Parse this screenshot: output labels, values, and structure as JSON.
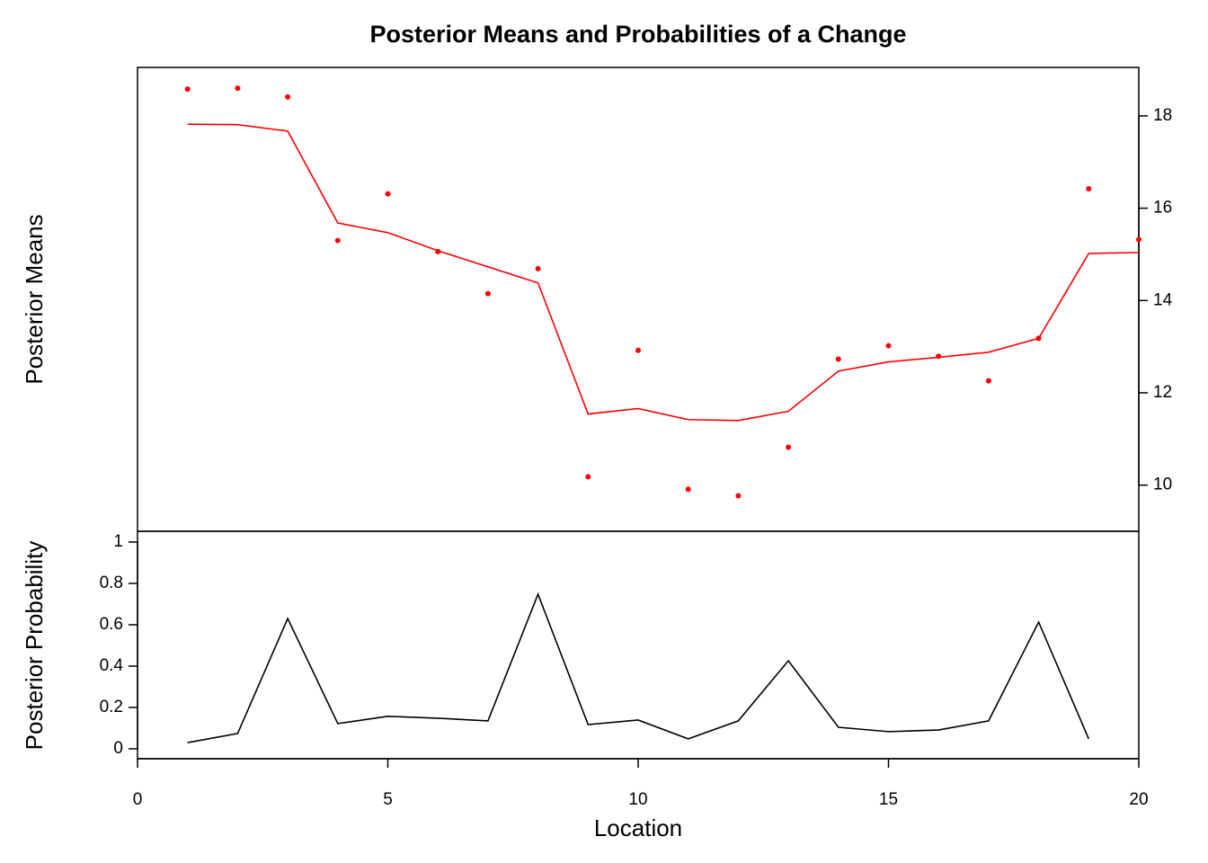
{
  "chart_data": [
    {
      "type": "line",
      "title": "Posterior Means and Probabilities of a Change",
      "y_label": "Posterior Means",
      "x": [
        1,
        2,
        3,
        4,
        5,
        6,
        7,
        8,
        9,
        10,
        11,
        12,
        13,
        14,
        15,
        16,
        17,
        18,
        19,
        20
      ],
      "series": [
        {
          "type": "scatter",
          "color": "#ff0000",
          "values": [
            18.58,
            18.6,
            18.41,
            15.3,
            16.31,
            15.06,
            14.15,
            14.69,
            10.18,
            12.92,
            9.91,
            9.77,
            10.82,
            12.73,
            13.02,
            12.79,
            12.26,
            13.18,
            16.42,
            15.32
          ]
        },
        {
          "type": "line",
          "color": "#ff0000",
          "values": [
            17.82,
            17.81,
            17.67,
            15.68,
            15.47,
            15.08,
            14.73,
            14.38,
            11.54,
            11.66,
            11.42,
            11.4,
            11.6,
            12.47,
            12.67,
            12.77,
            12.88,
            13.18,
            15.02,
            15.04
          ]
        }
      ],
      "xlim": [
        0,
        20
      ],
      "ylim": [
        9.0,
        19.05
      ],
      "yticks": [
        10,
        12,
        14,
        16,
        18
      ],
      "y_axis_side": "right"
    },
    {
      "type": "line",
      "y_label": "Posterior Probability",
      "x_label": "Location",
      "x": [
        1,
        2,
        3,
        4,
        5,
        6,
        7,
        8,
        9,
        10,
        11,
        12,
        13,
        14,
        15,
        16,
        17,
        18,
        19
      ],
      "series": [
        {
          "type": "line",
          "color": "#000000",
          "values": [
            0.03,
            0.074,
            0.63,
            0.122,
            0.157,
            0.148,
            0.135,
            0.748,
            0.117,
            0.139,
            0.048,
            0.135,
            0.426,
            0.104,
            0.083,
            0.091,
            0.135,
            0.613,
            0.048
          ]
        }
      ],
      "xlim": [
        0,
        20
      ],
      "xticks": [
        0,
        5,
        10,
        15,
        20
      ],
      "ylim": [
        -0.048,
        1.052
      ],
      "yticks": [
        0,
        0.2,
        0.4,
        0.6,
        0.8,
        1
      ],
      "y_axis_side": "left"
    }
  ]
}
